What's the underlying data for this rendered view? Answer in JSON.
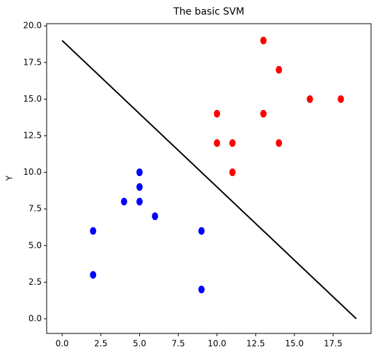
{
  "chart_data": {
    "type": "scatter",
    "title": "The basic SVM",
    "y_label": "Y",
    "xlim": [
      -1,
      19.95
    ],
    "ylim": [
      -1,
      20.15
    ],
    "xticks": [
      {
        "value": 0,
        "label": "0.0"
      },
      {
        "value": 2.5,
        "label": "2.5"
      },
      {
        "value": 5,
        "label": "5.0"
      },
      {
        "value": 7.5,
        "label": "7.5"
      },
      {
        "value": 10,
        "label": "10.0"
      },
      {
        "value": 12.5,
        "label": "12.5"
      },
      {
        "value": 15,
        "label": "15.0"
      },
      {
        "value": 17.5,
        "label": "17.5"
      }
    ],
    "yticks": [
      {
        "value": 0,
        "label": "0.0"
      },
      {
        "value": 2.5,
        "label": "2.5"
      },
      {
        "value": 5,
        "label": "5.0"
      },
      {
        "value": 7.5,
        "label": "7.5"
      },
      {
        "value": 10,
        "label": "10.0"
      },
      {
        "value": 12.5,
        "label": "12.5"
      },
      {
        "value": 15,
        "label": "15.0"
      },
      {
        "value": 17.5,
        "label": "17.5"
      },
      {
        "value": 20,
        "label": "20.0"
      }
    ],
    "series": [
      {
        "color": "#0000ff",
        "x": [
          2,
          2,
          4,
          5,
          5,
          5,
          6,
          9,
          9
        ],
        "values": [
          6,
          3,
          8,
          10,
          9,
          8,
          7,
          6,
          2
        ]
      },
      {
        "color": "#ff0000",
        "x": [
          10,
          10,
          11,
          11,
          13,
          13,
          14,
          14,
          16,
          18
        ],
        "values": [
          14,
          12,
          12,
          10,
          19,
          14,
          17,
          12,
          15,
          15
        ]
      }
    ],
    "line": {
      "color": "#000000",
      "x": [
        0,
        19
      ],
      "values": [
        19,
        0
      ]
    }
  }
}
